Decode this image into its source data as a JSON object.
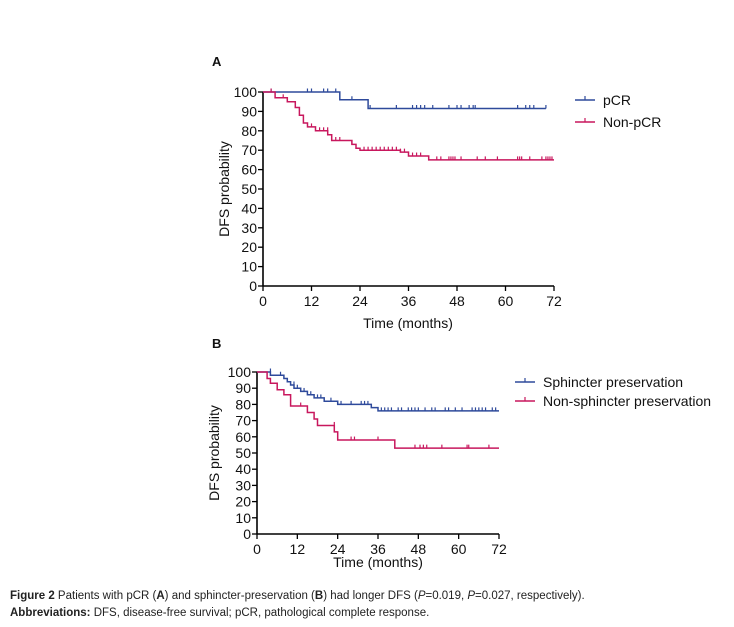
{
  "chart_data": [
    {
      "type": "line",
      "panel_label": "A",
      "title": "",
      "xlabel": "Time (months)",
      "ylabel": "DFS probability",
      "xlim": [
        0,
        72
      ],
      "ylim": [
        0,
        100
      ],
      "xticks": [
        0,
        12,
        24,
        36,
        48,
        60,
        72
      ],
      "yticks": [
        0,
        10,
        20,
        30,
        40,
        50,
        60,
        70,
        80,
        90,
        100
      ],
      "grid": false,
      "legend_position": "top-right",
      "curve_style": "kaplan-meier-step",
      "series": [
        {
          "name": "pCR",
          "color": "#2E4A9B",
          "steps": [
            [
              0,
              100
            ],
            [
              19,
              100
            ],
            [
              19,
              96
            ],
            [
              26,
              96
            ],
            [
              26,
              91.5
            ],
            [
              70,
              91.5
            ]
          ],
          "censored": [
            [
              2,
              100
            ],
            [
              11,
              100
            ],
            [
              12,
              100
            ],
            [
              15,
              100
            ],
            [
              16,
              100
            ],
            [
              18,
              100
            ],
            [
              22,
              96
            ],
            [
              26.5,
              91.5
            ],
            [
              33,
              91.5
            ],
            [
              37,
              91.5
            ],
            [
              38,
              91.5
            ],
            [
              39,
              91.5
            ],
            [
              40,
              91.5
            ],
            [
              42,
              91.5
            ],
            [
              46,
              91.5
            ],
            [
              48,
              91.5
            ],
            [
              49,
              91.5
            ],
            [
              51,
              91.5
            ],
            [
              52,
              91.5
            ],
            [
              52.5,
              91.5
            ],
            [
              63,
              91.5
            ],
            [
              65,
              91.5
            ],
            [
              66,
              91.5
            ],
            [
              67,
              91.5
            ],
            [
              70,
              91.5
            ]
          ]
        },
        {
          "name": "Non-pCR",
          "color": "#C8175D",
          "steps": [
            [
              0,
              100
            ],
            [
              3,
              100
            ],
            [
              3,
              97
            ],
            [
              6,
              97
            ],
            [
              6,
              95
            ],
            [
              8,
              95
            ],
            [
              8,
              92
            ],
            [
              9,
              92
            ],
            [
              9,
              88
            ],
            [
              10,
              88
            ],
            [
              10,
              84
            ],
            [
              11,
              84
            ],
            [
              11,
              82
            ],
            [
              13,
              82
            ],
            [
              13,
              80
            ],
            [
              16,
              80
            ],
            [
              16,
              78
            ],
            [
              17,
              78
            ],
            [
              17,
              75
            ],
            [
              22,
              75
            ],
            [
              22,
              73
            ],
            [
              23,
              73
            ],
            [
              23,
              71
            ],
            [
              24,
              71
            ],
            [
              24,
              70
            ],
            [
              34,
              70
            ],
            [
              34,
              69
            ],
            [
              36,
              69
            ],
            [
              36,
              67
            ],
            [
              41,
              67
            ],
            [
              41,
              65
            ],
            [
              72,
              65
            ]
          ],
          "censored": [
            [
              2,
              100
            ],
            [
              5,
              97
            ],
            [
              12,
              82
            ],
            [
              14,
              80
            ],
            [
              15,
              80
            ],
            [
              16,
              80
            ],
            [
              18,
              75
            ],
            [
              19,
              75
            ],
            [
              22,
              73
            ],
            [
              25,
              70
            ],
            [
              26,
              70
            ],
            [
              27,
              70
            ],
            [
              28,
              70
            ],
            [
              29,
              70
            ],
            [
              30,
              70
            ],
            [
              31,
              70
            ],
            [
              32,
              70
            ],
            [
              33,
              70
            ],
            [
              34,
              69
            ],
            [
              35,
              69
            ],
            [
              37,
              67
            ],
            [
              38,
              67
            ],
            [
              39,
              67
            ],
            [
              43,
              65
            ],
            [
              44,
              65
            ],
            [
              46,
              65
            ],
            [
              46.5,
              65
            ],
            [
              47,
              65
            ],
            [
              47.5,
              65
            ],
            [
              49,
              65
            ],
            [
              53,
              65
            ],
            [
              55,
              65
            ],
            [
              58,
              65
            ],
            [
              63,
              65
            ],
            [
              63.5,
              65
            ],
            [
              64,
              65
            ],
            [
              66,
              65
            ],
            [
              69,
              65
            ],
            [
              70,
              65
            ],
            [
              70.5,
              65
            ],
            [
              71,
              65
            ],
            [
              71.5,
              65
            ]
          ]
        }
      ]
    },
    {
      "type": "line",
      "panel_label": "B",
      "title": "",
      "xlabel": "Time (months)",
      "ylabel": "DFS probability",
      "xlim": [
        0,
        72
      ],
      "ylim": [
        0,
        100
      ],
      "xticks": [
        0,
        12,
        24,
        36,
        48,
        60,
        72
      ],
      "yticks": [
        0,
        10,
        20,
        30,
        40,
        50,
        60,
        70,
        80,
        90,
        100
      ],
      "grid": false,
      "legend_position": "top-right",
      "curve_style": "kaplan-meier-step",
      "series": [
        {
          "name": "Sphincter preservation",
          "color": "#2E4A9B",
          "steps": [
            [
              0,
              100
            ],
            [
              4,
              100
            ],
            [
              4,
              98
            ],
            [
              8,
              98
            ],
            [
              8,
              96
            ],
            [
              9,
              96
            ],
            [
              9,
              94
            ],
            [
              10,
              94
            ],
            [
              10,
              92
            ],
            [
              11,
              92
            ],
            [
              11,
              90
            ],
            [
              13,
              90
            ],
            [
              13,
              88
            ],
            [
              15,
              88
            ],
            [
              15,
              86
            ],
            [
              17,
              86
            ],
            [
              17,
              84
            ],
            [
              20,
              84
            ],
            [
              20,
              82
            ],
            [
              24,
              82
            ],
            [
              24,
              80
            ],
            [
              34,
              80
            ],
            [
              34,
              78
            ],
            [
              36,
              78
            ],
            [
              36,
              76
            ],
            [
              72,
              76
            ]
          ],
          "censored": [
            [
              4,
              100
            ],
            [
              7,
              98
            ],
            [
              11,
              92
            ],
            [
              12,
              90
            ],
            [
              14,
              88
            ],
            [
              16,
              86
            ],
            [
              18,
              84
            ],
            [
              19,
              84
            ],
            [
              22,
              82
            ],
            [
              25,
              80
            ],
            [
              28,
              80
            ],
            [
              31,
              80
            ],
            [
              32,
              80
            ],
            [
              33,
              80
            ],
            [
              37,
              76
            ],
            [
              38,
              76
            ],
            [
              39,
              76
            ],
            [
              40,
              76
            ],
            [
              42,
              76
            ],
            [
              43,
              76
            ],
            [
              45,
              76
            ],
            [
              46,
              76
            ],
            [
              47,
              76
            ],
            [
              48,
              76
            ],
            [
              50,
              76
            ],
            [
              52,
              76
            ],
            [
              53,
              76
            ],
            [
              56,
              76
            ],
            [
              57,
              76
            ],
            [
              59,
              76
            ],
            [
              61,
              76
            ],
            [
              64,
              76
            ],
            [
              65,
              76
            ],
            [
              66,
              76
            ],
            [
              67,
              76
            ],
            [
              68,
              76
            ],
            [
              70,
              76
            ],
            [
              71,
              76
            ]
          ]
        },
        {
          "name": "Non-sphincter preservation",
          "color": "#C8175D",
          "steps": [
            [
              0,
              100
            ],
            [
              3,
              100
            ],
            [
              3,
              96
            ],
            [
              4,
              96
            ],
            [
              4,
              93
            ],
            [
              6,
              93
            ],
            [
              6,
              89
            ],
            [
              8,
              89
            ],
            [
              8,
              86
            ],
            [
              10,
              86
            ],
            [
              10,
              79
            ],
            [
              15,
              79
            ],
            [
              15,
              75
            ],
            [
              17,
              75
            ],
            [
              17,
              71
            ],
            [
              18,
              71
            ],
            [
              18,
              67
            ],
            [
              23,
              67
            ],
            [
              23,
              63
            ],
            [
              24,
              63
            ],
            [
              24,
              58
            ],
            [
              41,
              58
            ],
            [
              41,
              53
            ],
            [
              72,
              53
            ]
          ],
          "censored": [
            [
              13,
              79
            ],
            [
              23,
              67
            ],
            [
              28,
              58
            ],
            [
              29,
              58
            ],
            [
              36,
              58
            ],
            [
              47,
              53
            ],
            [
              48.5,
              53
            ],
            [
              49.5,
              53
            ],
            [
              50.5,
              53
            ],
            [
              55,
              53
            ],
            [
              62.5,
              53
            ],
            [
              63,
              53
            ],
            [
              69,
              53
            ]
          ]
        }
      ]
    }
  ],
  "caption": {
    "figure_label": "Figure 2",
    "text_1": " Patients with pCR (",
    "bold_a": "A",
    "text_2": ") and sphincter-preservation (",
    "bold_b": "B",
    "text_3": ") had longer DFS (",
    "p_label_1": "P",
    "text_4": "=0.019, ",
    "p_label_2": "P",
    "text_5": "=0.027, respectively).",
    "abbrev_label": "Abbreviations:",
    "abbrev_text": " DFS, disease-free survival; pCR, pathological complete response."
  }
}
